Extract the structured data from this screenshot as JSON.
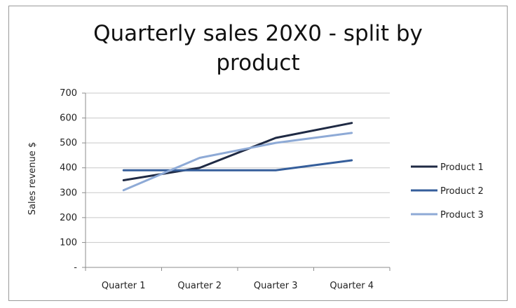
{
  "chart_data": {
    "type": "line",
    "title_lines": [
      "Quarterly sales 20X0 - split by",
      "product"
    ],
    "ylabel": "Sales revenue $",
    "xlabel": "",
    "categories": [
      "Quarter 1",
      "Quarter 2",
      "Quarter 3",
      "Quarter 4"
    ],
    "y_tick_labels": [
      "-",
      "100",
      "200",
      "300",
      "400",
      "500",
      "600",
      "700"
    ],
    "ylim": [
      0,
      700
    ],
    "grid": true,
    "legend_position": "right",
    "series": [
      {
        "name": "Product 1",
        "color": "#1f2a44",
        "values": [
          350,
          400,
          520,
          580
        ]
      },
      {
        "name": "Product 2",
        "color": "#355e9b",
        "values": [
          390,
          390,
          390,
          430
        ]
      },
      {
        "name": "Product 3",
        "color": "#8eaad6",
        "values": [
          310,
          440,
          500,
          540
        ]
      }
    ]
  }
}
